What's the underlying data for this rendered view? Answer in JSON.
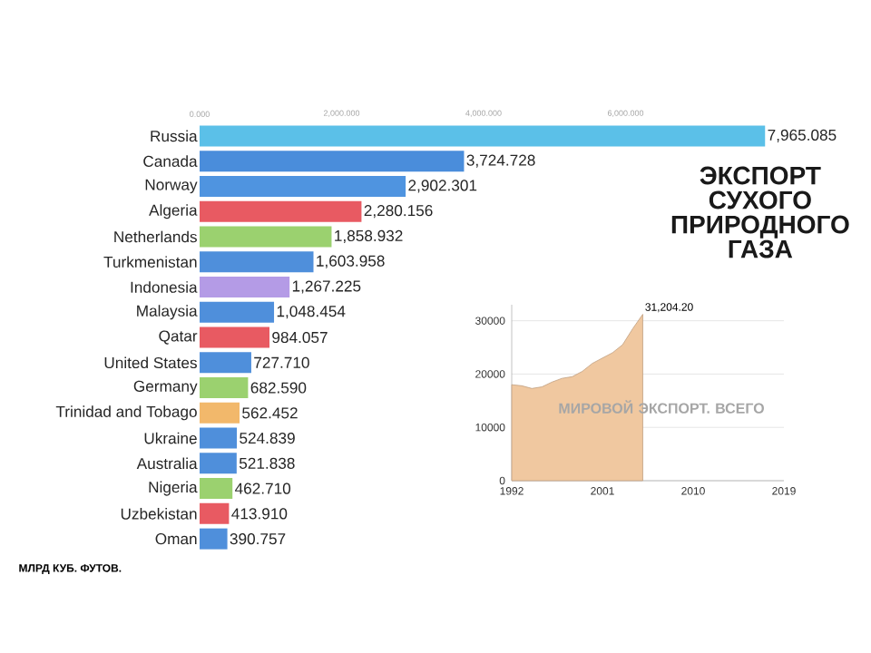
{
  "chart_data": [
    {
      "type": "bar",
      "orientation": "horizontal",
      "title": "ЭКСПОРТ СУХОГО ПРИРОДНОГО ГАЗА",
      "categories": [
        "Russia",
        "Canada",
        "Norway",
        "Algeria",
        "Netherlands",
        "Turkmenistan",
        "Indonesia",
        "Malaysia",
        "Qatar",
        "United States",
        "Germany",
        "Trinidad and Tobago",
        "Ukraine",
        "Australia",
        "Nigeria",
        "Uzbekistan",
        "Oman"
      ],
      "values": [
        7965.085,
        3724.728,
        2902.301,
        2280.156,
        1858.932,
        1603.958,
        1267.225,
        1048.454,
        984.057,
        727.71,
        682.59,
        562.452,
        524.839,
        521.838,
        462.71,
        413.91,
        390.757
      ],
      "value_labels": [
        "7,965.085",
        "3,724.728",
        "2,902.301",
        "2,280.156",
        "1,858.932",
        "1,603.958",
        "1,267.225",
        "1,048.454",
        "984.057",
        "727.710",
        "682.590",
        "562.452",
        "524.839",
        "521.838",
        "462.710",
        "413.910",
        "390.757"
      ],
      "colors": [
        "#5bc0e8",
        "#4a8ddb",
        "#4f94e0",
        "#e85a62",
        "#9bd16f",
        "#4f8fdb",
        "#b49be6",
        "#4f8fdb",
        "#e85a62",
        "#4f8fdb",
        "#9bd16f",
        "#f2b86b",
        "#4f8fdb",
        "#4f8fdb",
        "#9bd16f",
        "#e85a62",
        "#4f8fdb"
      ],
      "xlim": [
        0,
        8000
      ],
      "xticks": [
        {
          "value": 0,
          "label": "0.000"
        },
        {
          "value": 2000,
          "label": "2,000.000"
        },
        {
          "value": 4000,
          "label": "4,000.000"
        },
        {
          "value": 6000,
          "label": "6,000.000"
        }
      ],
      "annotations": [
        "МЛРД КУБ. ФУТОВ."
      ]
    },
    {
      "type": "area",
      "title": "МИРОВОЙ ЭКСПОРТ. ВСЕГО",
      "color": "#f0c8a0",
      "x": [
        1992,
        1993,
        1994,
        1995,
        1996,
        1997,
        1998,
        1999,
        2000,
        2001,
        2002,
        2003,
        2004,
        2005
      ],
      "values": [
        18000,
        17800,
        17300,
        17600,
        18500,
        19200,
        19500,
        20500,
        22000,
        23000,
        24000,
        25500,
        28500,
        31204.2
      ],
      "xlim": [
        1992,
        2019
      ],
      "xticks": [
        1992,
        2001,
        2010,
        2019
      ],
      "ylim": [
        0,
        33000
      ],
      "yticks": [
        0,
        10000,
        20000,
        30000
      ],
      "grid": "y",
      "annotations": [
        {
          "text": "31,204.20",
          "x": 2005,
          "y": 31204.2
        }
      ]
    }
  ]
}
